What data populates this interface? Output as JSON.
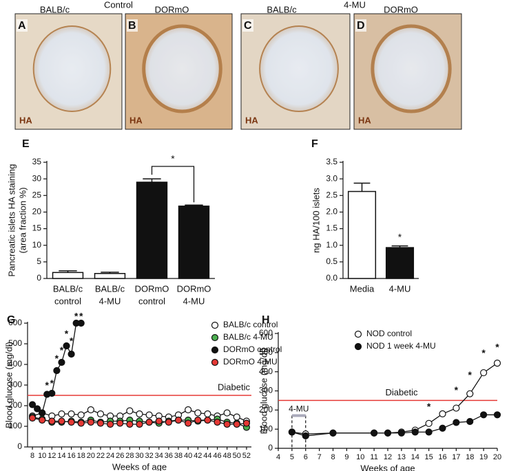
{
  "micrographs": {
    "groups": [
      {
        "title": "Control",
        "strains": [
          "BALB/c",
          "DORmO"
        ]
      },
      {
        "title": "4-MU",
        "strains": [
          "BALB/c",
          "DORmO"
        ]
      }
    ],
    "panels": [
      {
        "letter": "A",
        "stain": "HA"
      },
      {
        "letter": "B",
        "stain": "HA"
      },
      {
        "letter": "C",
        "stain": "HA"
      },
      {
        "letter": "D",
        "stain": "HA"
      }
    ]
  },
  "chart_data": [
    {
      "type": "bar",
      "panel": "E",
      "ylabel": [
        "Pancreatic islets HA staining",
        "(area fraction %)"
      ],
      "categories": [
        [
          "BALB/c",
          "control"
        ],
        [
          "BALB/c",
          "4-MU"
        ],
        [
          "DORmO",
          "control"
        ],
        [
          "DORmO",
          "4-MU"
        ]
      ],
      "values": [
        1.8,
        1.5,
        29,
        21.8
      ],
      "errors": [
        0.5,
        0.4,
        1,
        0.3
      ],
      "colors": [
        "#ffffff",
        "#ffffff",
        "#111111",
        "#111111"
      ],
      "ylim": [
        0,
        35
      ],
      "yticks": [
        0,
        5,
        10,
        15,
        20,
        25,
        30,
        35
      ],
      "significance": {
        "from": 2,
        "to": 3,
        "text": "*"
      }
    },
    {
      "type": "bar",
      "panel": "F",
      "ylabel": [
        "ng HA/100 islets"
      ],
      "categories": [
        [
          "Media"
        ],
        [
          "4-MU"
        ]
      ],
      "values": [
        2.62,
        0.93
      ],
      "errors": [
        0.25,
        0.05
      ],
      "colors": [
        "#ffffff",
        "#111111"
      ],
      "ylim": [
        0,
        3.5
      ],
      "yticks": [
        {
          "value": 0,
          "label": "0.0"
        },
        0.5,
        {
          "value": 1,
          "label": "1.0"
        },
        1.5,
        {
          "value": 2,
          "label": "2.0"
        },
        2.5,
        {
          "value": 3,
          "label": "3.0"
        },
        3.5
      ],
      "annotations": [
        {
          "category": 1,
          "text": "*"
        }
      ]
    },
    {
      "type": "line",
      "panel": "G",
      "ylabel": "Blood glucose (mg/dl)",
      "xlabel": "Weeks of age",
      "xlim": [
        7,
        53
      ],
      "xticks": [
        8,
        10,
        12,
        14,
        16,
        18,
        20,
        22,
        24,
        26,
        28,
        30,
        32,
        34,
        36,
        38,
        40,
        42,
        44,
        46,
        48,
        50,
        52
      ],
      "ylim": [
        0,
        600
      ],
      "yticks": [
        0,
        100,
        200,
        300,
        400,
        500,
        600
      ],
      "reference": {
        "value": 250,
        "label": "Diabetic",
        "color": "#e53935"
      },
      "series": [
        {
          "name": "BALB/c control",
          "color": "#ffffff",
          "x": [
            8,
            10,
            12,
            14,
            16,
            18,
            20,
            22,
            24,
            26,
            28,
            30,
            32,
            34,
            36,
            38,
            40,
            42,
            44,
            46,
            48,
            50,
            52
          ],
          "values": [
            150,
            165,
            150,
            160,
            160,
            155,
            180,
            160,
            150,
            150,
            175,
            160,
            155,
            150,
            145,
            155,
            180,
            165,
            160,
            150,
            165,
            145,
            125
          ]
        },
        {
          "name": "BALB/c 4-MU",
          "color": "#4caf50",
          "x": [
            8,
            10,
            12,
            14,
            16,
            18,
            20,
            22,
            24,
            26,
            28,
            30,
            32,
            34,
            36,
            38,
            40,
            42,
            44,
            46,
            48,
            50,
            52
          ],
          "values": [
            145,
            135,
            120,
            120,
            125,
            120,
            130,
            120,
            125,
            125,
            130,
            125,
            120,
            115,
            125,
            130,
            130,
            125,
            130,
            135,
            120,
            115,
            95
          ]
        },
        {
          "name": "DORmO control",
          "color": "#111111",
          "x": [
            8,
            9,
            10,
            11,
            12,
            13,
            14,
            15,
            16,
            17,
            18
          ],
          "values": [
            205,
            185,
            165,
            255,
            260,
            370,
            410,
            490,
            450,
            600,
            600
          ]
        },
        {
          "name": "DORmO 4-MU",
          "color": "#e53935",
          "x": [
            8,
            10,
            12,
            14,
            16,
            18,
            20,
            22,
            24,
            26,
            28,
            30,
            32,
            34,
            36,
            38,
            40,
            42,
            44,
            46,
            48,
            50,
            52
          ],
          "values": [
            140,
            130,
            125,
            125,
            120,
            115,
            120,
            115,
            110,
            115,
            110,
            110,
            120,
            125,
            120,
            130,
            115,
            130,
            130,
            120,
            110,
            110,
            115
          ]
        }
      ],
      "annotations": [
        {
          "text": "*",
          "x": 11,
          "y": 295
        },
        {
          "text": "*",
          "x": 12,
          "y": 305
        },
        {
          "text": "*",
          "x": 13,
          "y": 425
        },
        {
          "text": "*",
          "x": 14,
          "y": 465
        },
        {
          "text": "*",
          "x": 15,
          "y": 545
        },
        {
          "text": "*",
          "x": 16,
          "y": 510
        },
        {
          "text": "*",
          "x": 17,
          "y": 630
        },
        {
          "text": "*",
          "x": 18,
          "y": 630
        }
      ]
    },
    {
      "type": "line",
      "panel": "H",
      "ylabel": "Blood glucose (mg/dl)",
      "xlabel": "Weeks of age",
      "xlim": [
        4,
        20
      ],
      "xticks": [
        4,
        5,
        6,
        7,
        8,
        9,
        10,
        11,
        12,
        13,
        14,
        15,
        16,
        17,
        18,
        19,
        20
      ],
      "ylim": [
        0,
        600
      ],
      "yticks": [
        0,
        100,
        200,
        300,
        400,
        500,
        600
      ],
      "reference": {
        "value": 250,
        "label": "Diabetic",
        "color": "#e53935"
      },
      "treatment": {
        "label": "4-MU",
        "from": 5,
        "to": 6
      },
      "series": [
        {
          "name": "NOD control",
          "color": "#ffffff",
          "x": [
            5,
            6,
            8,
            11,
            12,
            13,
            14,
            15,
            16,
            17,
            18,
            19,
            20
          ],
          "values": [
            85,
            75,
            80,
            80,
            80,
            85,
            95,
            130,
            180,
            210,
            285,
            395,
            445
          ]
        },
        {
          "name": "NOD 1 week 4-MU",
          "color": "#111111",
          "x": [
            5,
            6,
            8,
            11,
            12,
            13,
            14,
            15,
            16,
            17,
            18,
            19,
            20
          ],
          "values": [
            85,
            65,
            80,
            80,
            80,
            80,
            85,
            85,
            105,
            135,
            140,
            175,
            175
          ]
        }
      ],
      "annotations": [
        {
          "text": "*",
          "x": 15,
          "y": 215
        },
        {
          "text": "*",
          "x": 17,
          "y": 300
        },
        {
          "text": "*",
          "x": 18,
          "y": 380
        },
        {
          "text": "*",
          "x": 19,
          "y": 495
        },
        {
          "text": "*",
          "x": 20,
          "y": 525
        }
      ]
    }
  ]
}
